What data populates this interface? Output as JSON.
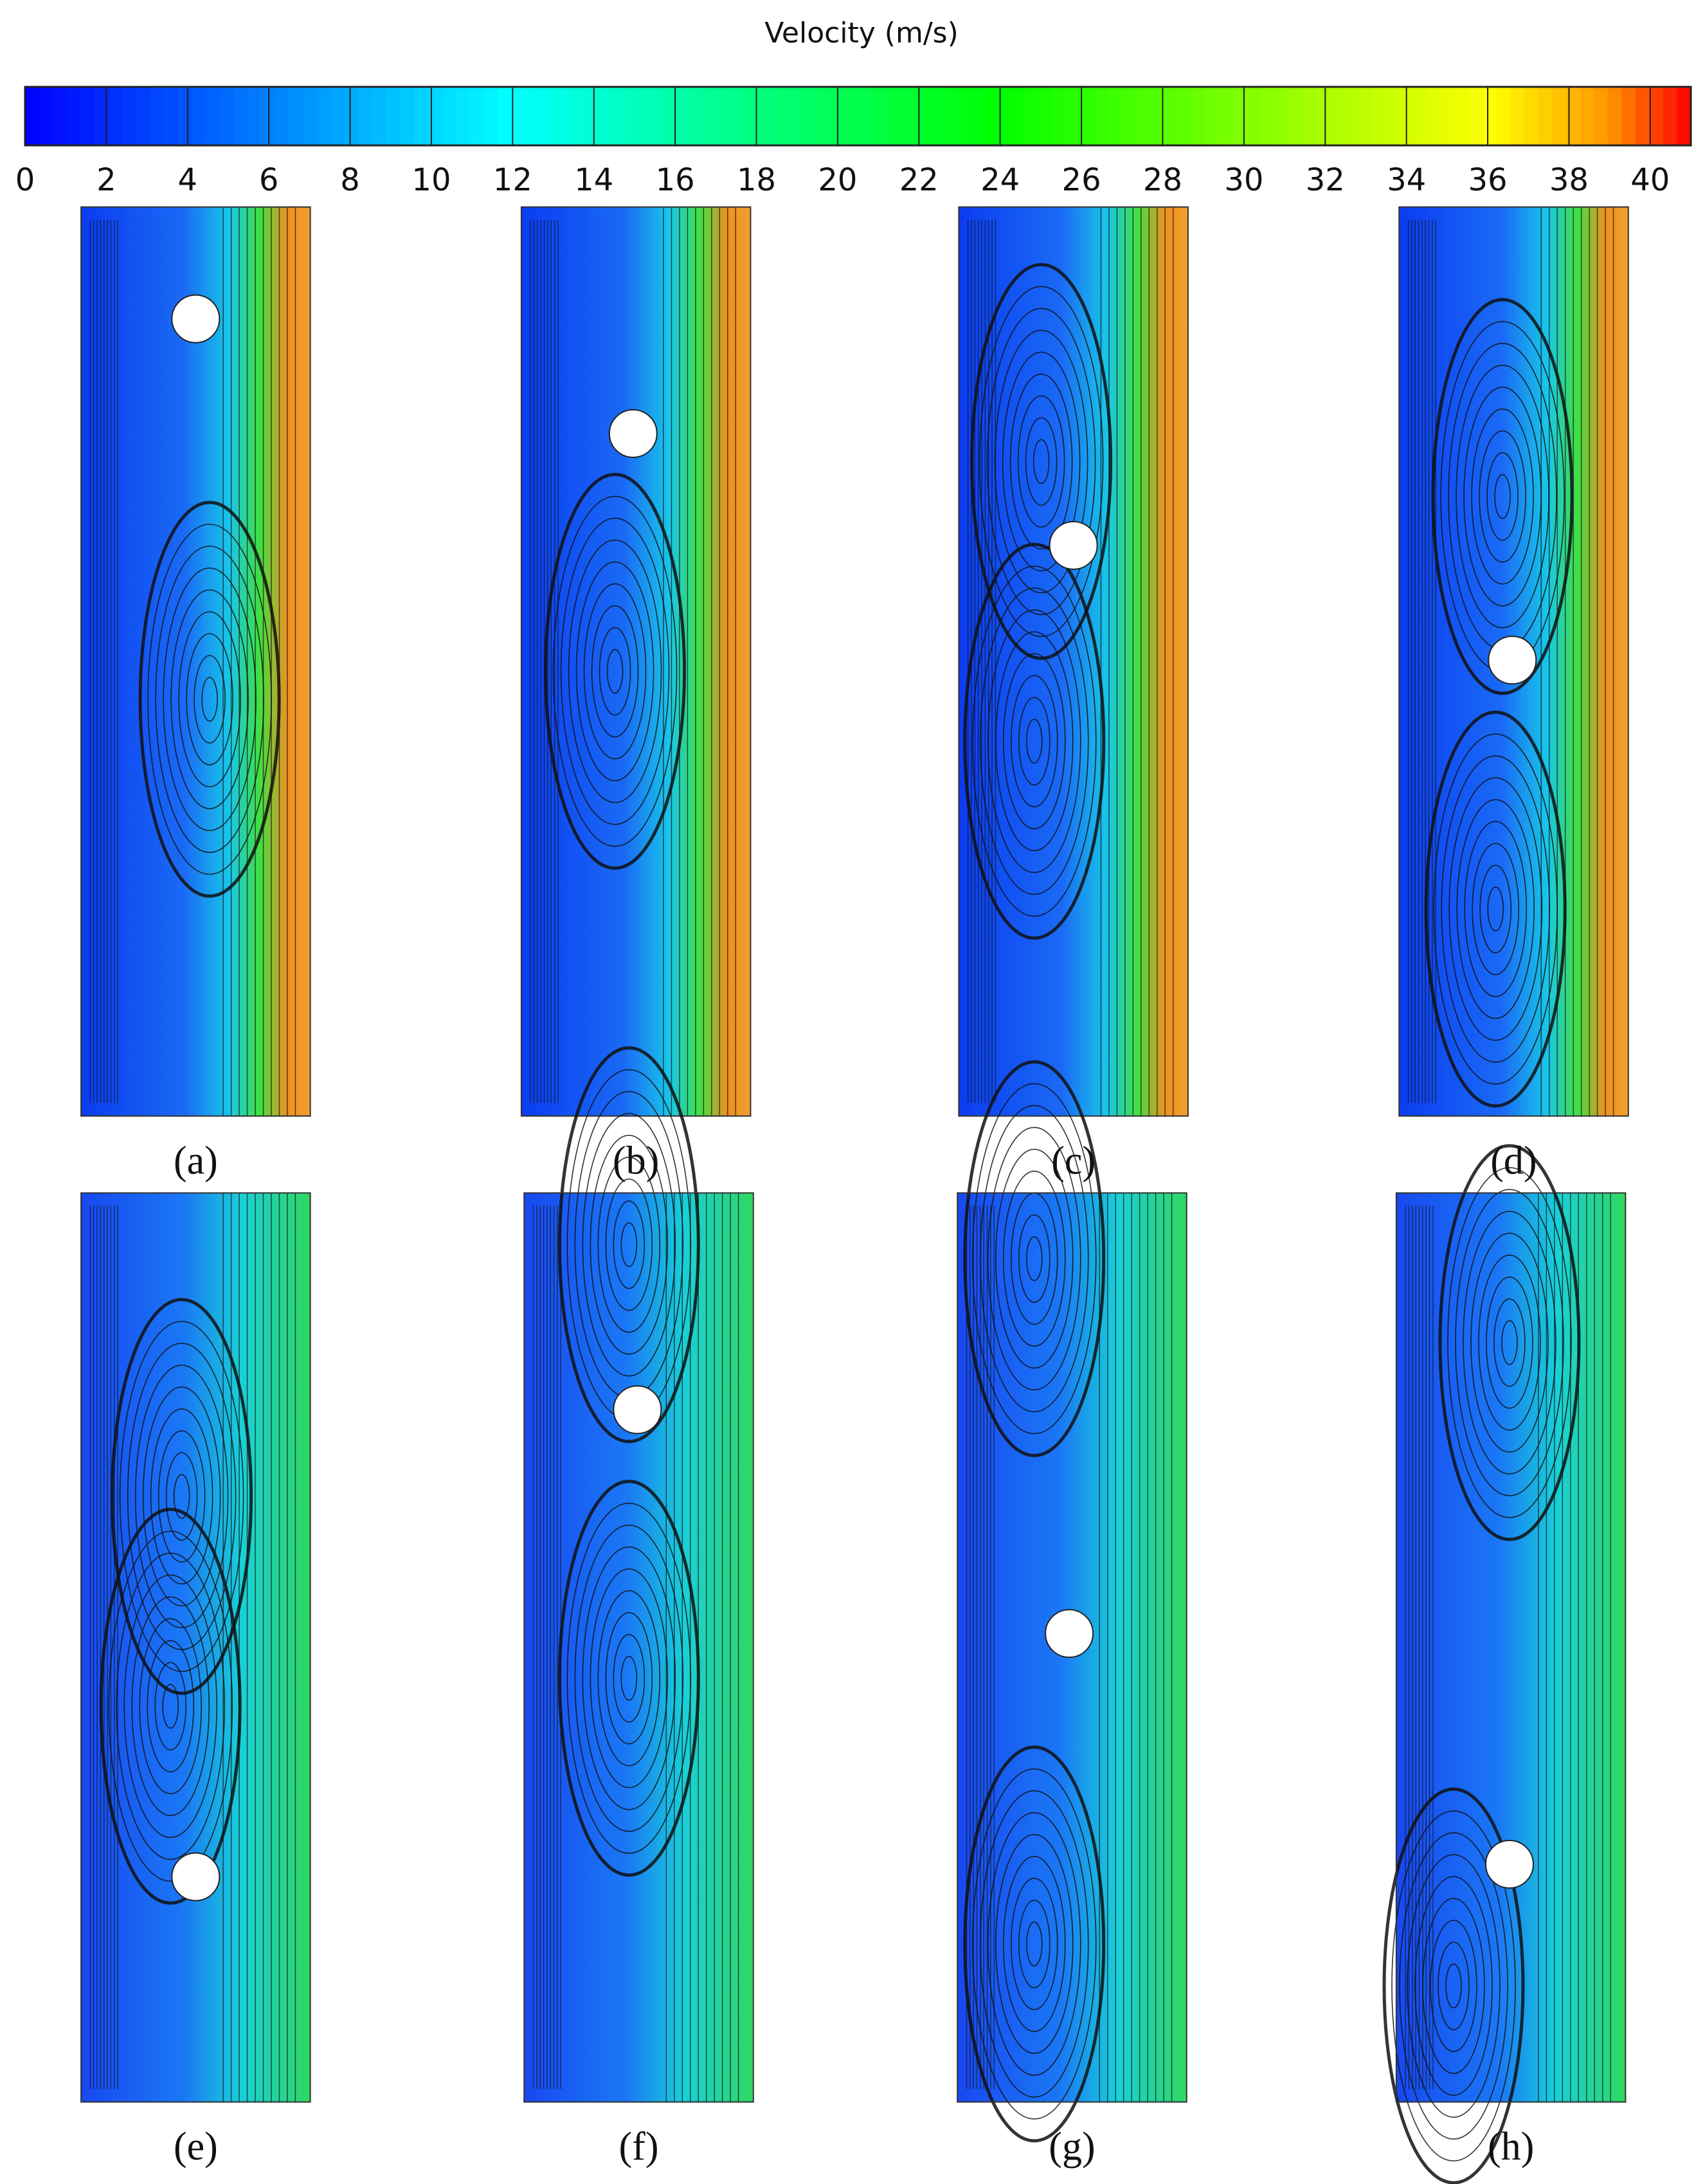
{
  "colorbar": {
    "title": "Velocity (m/s)",
    "range": [
      0,
      41
    ],
    "ticks": [
      0,
      2,
      4,
      6,
      8,
      10,
      12,
      14,
      16,
      18,
      20,
      22,
      24,
      26,
      28,
      30,
      32,
      34,
      36,
      38,
      40
    ]
  },
  "panels": [
    {
      "label": "(a)"
    },
    {
      "label": "(b)"
    },
    {
      "label": "(c)"
    },
    {
      "label": "(d)"
    },
    {
      "label": "(e)"
    },
    {
      "label": "(f)"
    },
    {
      "label": "(g)"
    },
    {
      "label": "(h)"
    }
  ]
}
